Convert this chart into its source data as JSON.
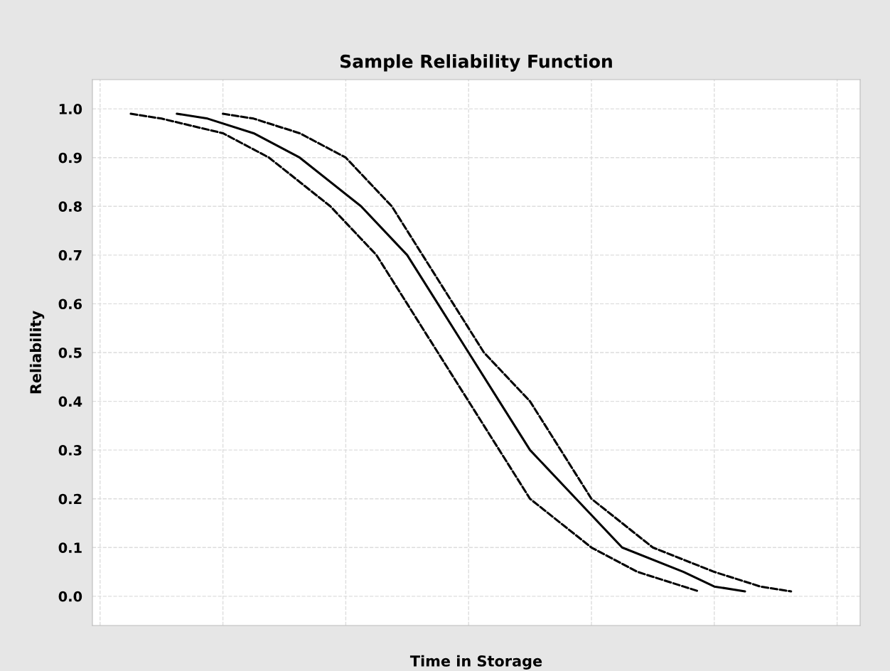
{
  "chart_data": {
    "type": "line",
    "title": "Sample Reliability Function",
    "xlabel": "Time in Storage",
    "ylabel": "Reliability",
    "categories": [
      null,
      null,
      null,
      null,
      null,
      null,
      null,
      null,
      null,
      null,
      null,
      null,
      null,
      null,
      null,
      null,
      null,
      null,
      null,
      null,
      null,
      null,
      null,
      null,
      null,
      null,
      null,
      null,
      null,
      null,
      null,
      null,
      null,
      null,
      null,
      null,
      null,
      null,
      null,
      null,
      null,
      null,
      null,
      null,
      null,
      null,
      null,
      null,
      null,
      null
    ],
    "ylim": [
      -0.06,
      1.06
    ],
    "yticks": [
      {
        "value": 0,
        "label": "0.0"
      },
      0.1,
      0.2,
      0.3,
      0.4,
      0.5,
      0.6,
      0.7,
      0.8,
      0.9,
      {
        "value": 1,
        "label": "1.0"
      }
    ],
    "grid": true,
    "legend": false,
    "marker": "none",
    "tick_labels": "y",
    "series": [
      {
        "color": "#000000",
        "line_style": "dashed",
        "values": [
          null,
          null,
          0.99,
          null,
          0.98,
          null,
          null,
          null,
          0.95,
          null,
          null,
          0.9,
          null,
          null,
          null,
          0.8,
          null,
          null,
          0.7,
          null,
          0.6,
          null,
          0.5,
          null,
          0.4,
          null,
          0.3,
          null,
          0.2,
          null,
          null,
          null,
          0.1,
          null,
          null,
          0.05,
          null,
          null,
          0.02,
          0.01,
          null,
          null,
          null,
          null,
          null,
          null,
          null,
          null,
          null,
          null
        ]
      },
      {
        "color": "#000000",
        "line_style": "solid",
        "values": [
          null,
          null,
          null,
          null,
          null,
          0.99,
          null,
          0.98,
          null,
          null,
          0.95,
          null,
          null,
          0.9,
          null,
          null,
          null,
          0.8,
          null,
          null,
          0.7,
          null,
          0.6,
          null,
          0.5,
          null,
          0.4,
          null,
          0.3,
          null,
          null,
          0.2,
          null,
          null,
          0.1,
          null,
          null,
          null,
          0.05,
          null,
          0.02,
          null,
          0.01,
          null,
          null,
          null,
          null,
          null,
          null,
          null
        ]
      },
      {
        "color": "#000000",
        "line_style": "dashed",
        "values": [
          null,
          null,
          null,
          null,
          null,
          null,
          null,
          null,
          0.99,
          null,
          0.98,
          null,
          null,
          0.95,
          null,
          null,
          0.9,
          null,
          null,
          0.8,
          null,
          0.7,
          null,
          0.6,
          null,
          0.5,
          null,
          null,
          0.4,
          null,
          0.3,
          null,
          0.2,
          null,
          null,
          null,
          0.1,
          null,
          null,
          null,
          0.05,
          null,
          null,
          0.02,
          null,
          0.01,
          null,
          null,
          null,
          null
        ]
      }
    ]
  }
}
